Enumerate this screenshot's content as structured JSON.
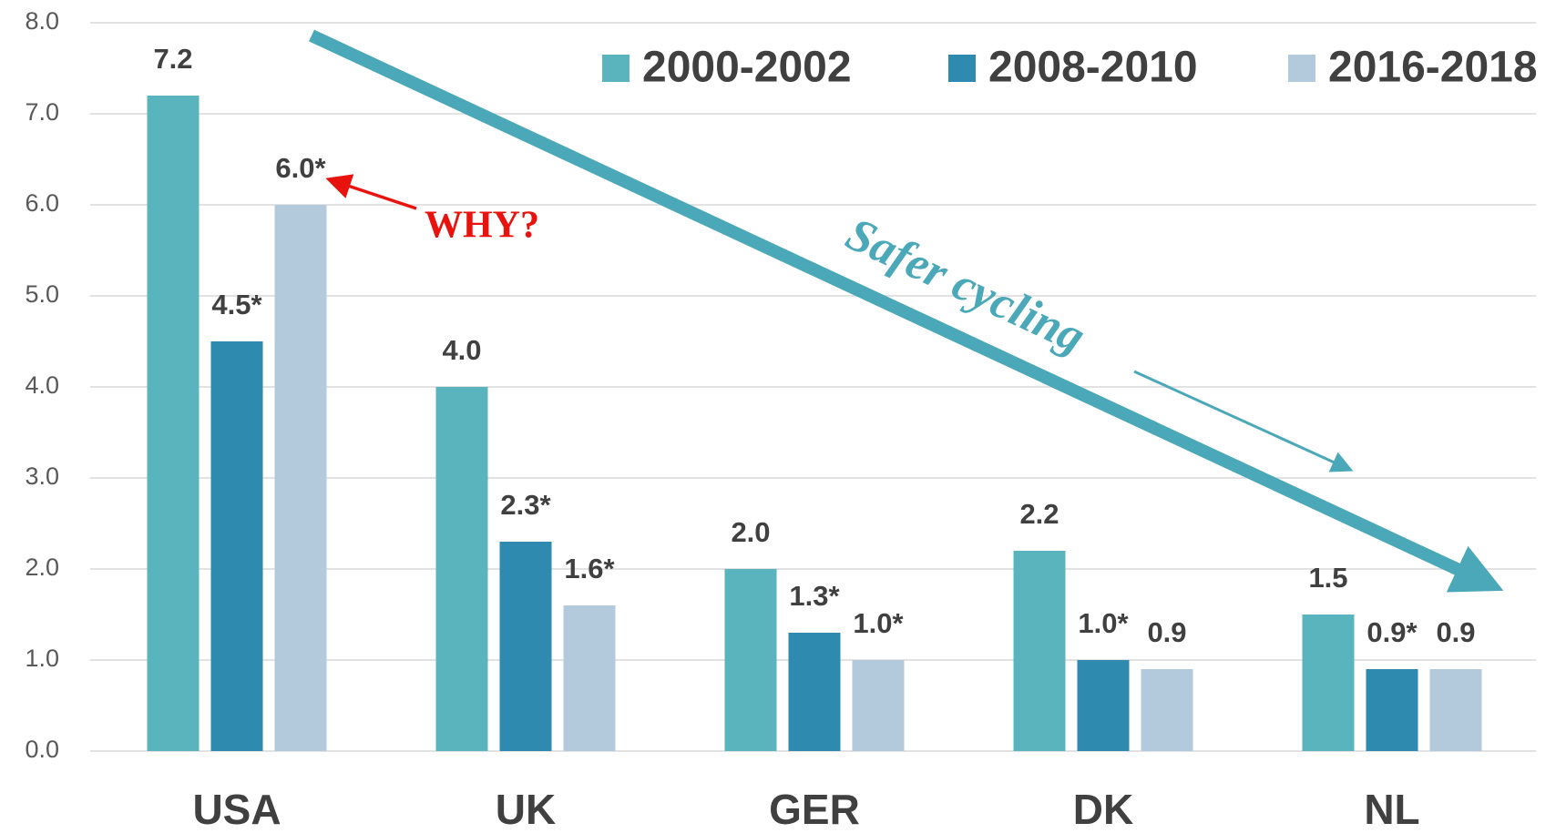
{
  "chart_data": {
    "type": "bar",
    "categories": [
      "USA",
      "UK",
      "GER",
      "DK",
      "NL"
    ],
    "series": [
      {
        "name": "2000-2002",
        "color": "#5ab4bd",
        "values": [
          7.2,
          4.0,
          2.0,
          2.2,
          1.5
        ],
        "value_labels": [
          "7.2",
          "4.0",
          "2.0",
          "2.2",
          "1.5"
        ]
      },
      {
        "name": "2008-2010",
        "color": "#2e8aae",
        "values": [
          4.5,
          2.3,
          1.3,
          1.0,
          0.9
        ],
        "value_labels": [
          "4.5*",
          "2.3*",
          "1.3*",
          "1.0*",
          "0.9*"
        ]
      },
      {
        "name": "2016-2018",
        "color": "#b3c9dc",
        "values": [
          6.0,
          1.6,
          1.0,
          0.9,
          0.9
        ],
        "value_labels": [
          "6.0*",
          "1.6*",
          "1.0*",
          "0.9",
          "0.9"
        ]
      }
    ],
    "ylim": [
      0,
      8
    ],
    "yticks": [
      {
        "value": 0,
        "label": "0.0"
      },
      {
        "value": 1,
        "label": "1.0"
      },
      {
        "value": 2,
        "label": "2.0"
      },
      {
        "value": 3,
        "label": "3.0"
      },
      {
        "value": 4,
        "label": "4.0"
      },
      {
        "value": 5,
        "label": "5.0"
      },
      {
        "value": 6,
        "label": "6.0"
      },
      {
        "value": 7,
        "label": "7.0"
      },
      {
        "value": 8,
        "label": "8.0"
      }
    ],
    "grid": true,
    "legend": "top-right",
    "annotations": [
      "WHY?",
      "Safer cycling"
    ]
  }
}
